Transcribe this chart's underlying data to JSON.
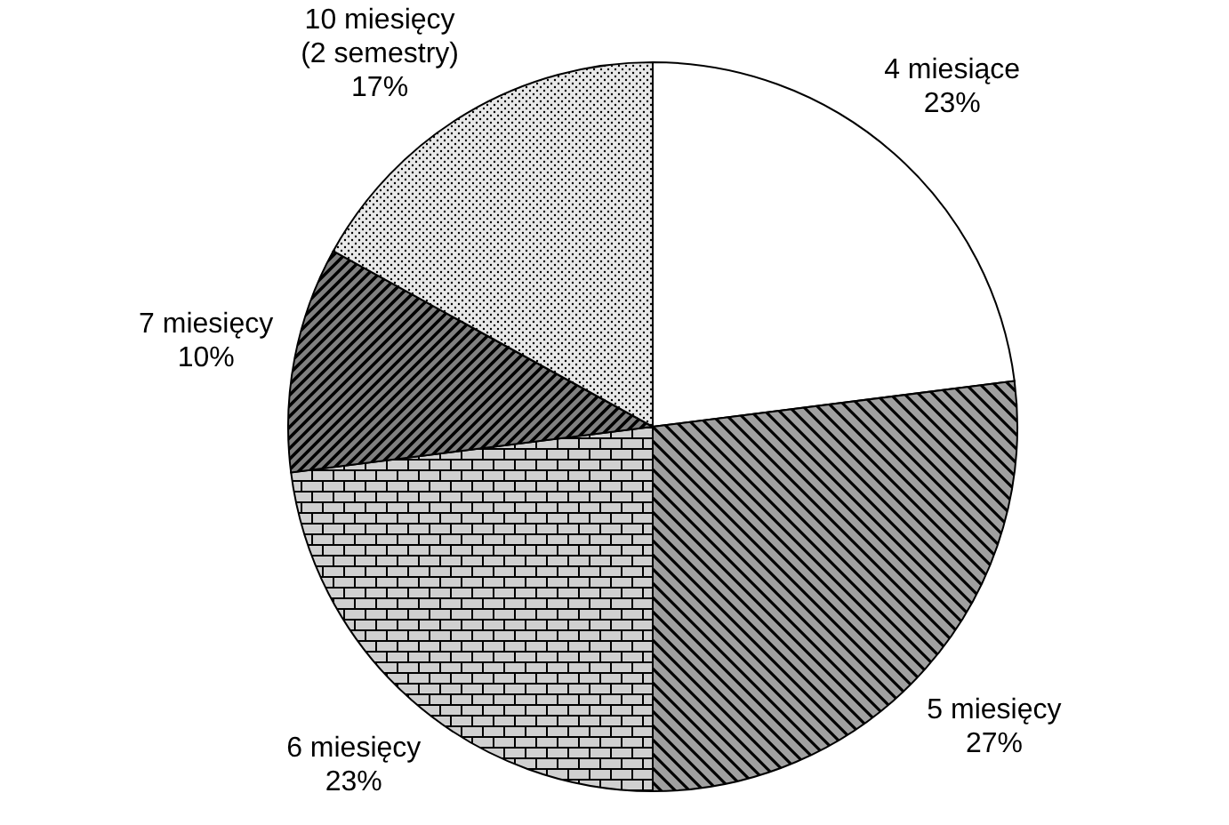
{
  "chart_data": {
    "type": "pie",
    "categories": [
      "4 miesiące",
      "5 miesięcy",
      "6 miesięcy",
      "7 miesięcy",
      "10 miesięcy (2 semestry)"
    ],
    "values": [
      23,
      27,
      23,
      10,
      17
    ],
    "colors": [
      "#ffffff",
      "#a0a0a0",
      "#d0d0d0",
      "#808080",
      "#e8e8e8"
    ],
    "value_labels": [
      "23%",
      "27%",
      "23%",
      "10%",
      "17%"
    ]
  }
}
